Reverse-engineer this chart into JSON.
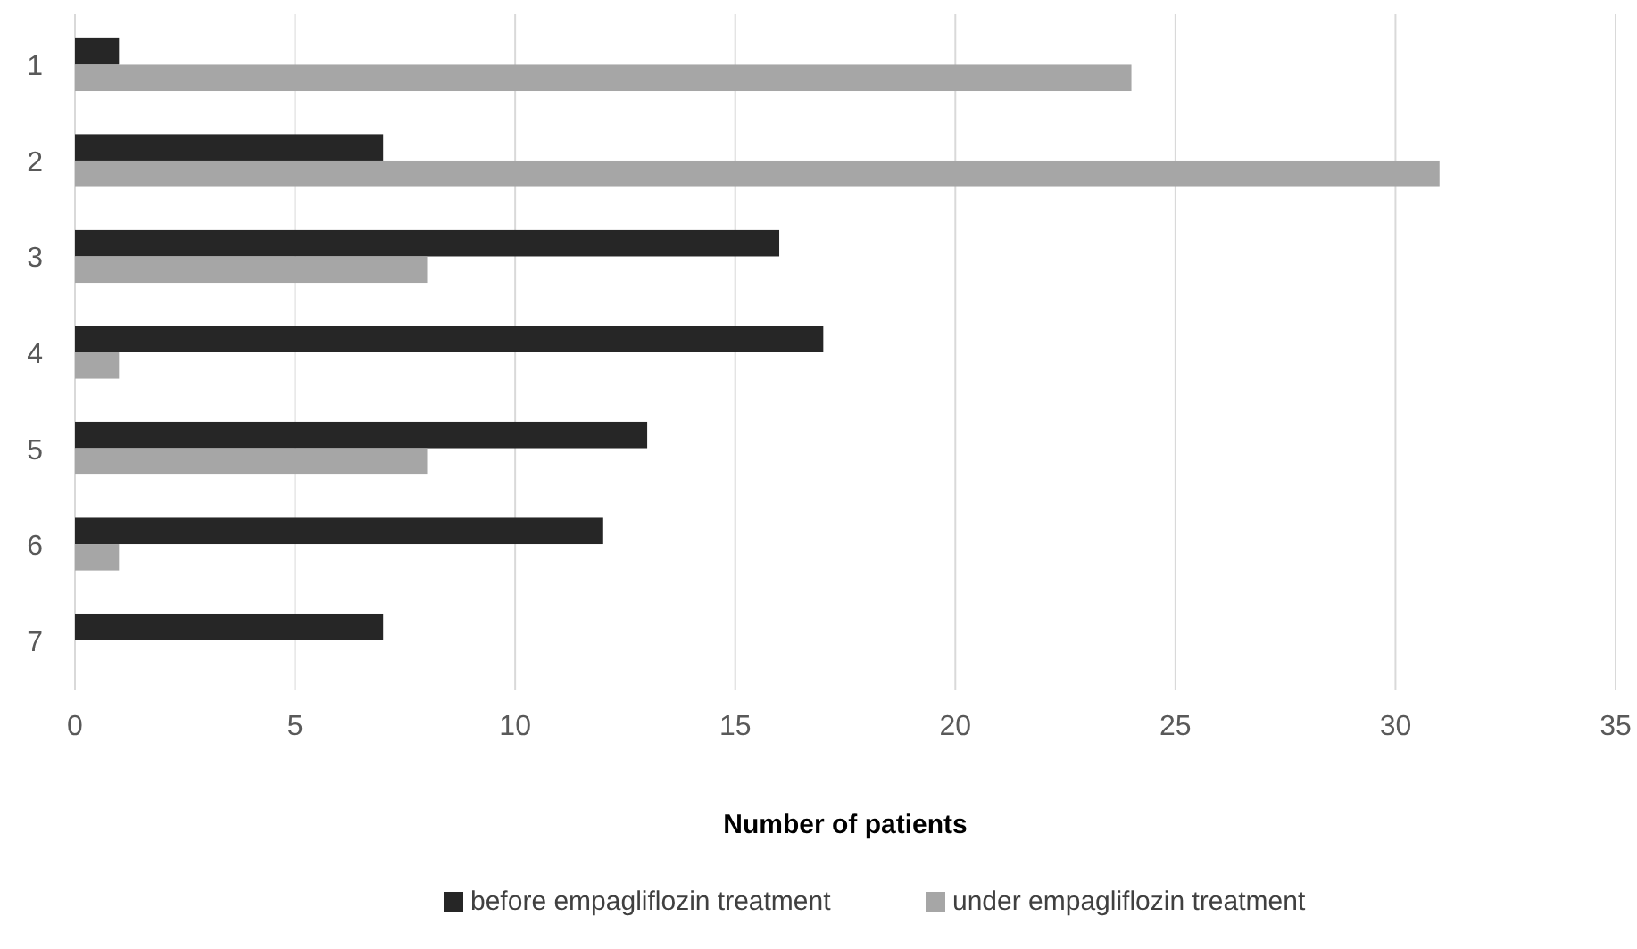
{
  "chart_data": {
    "type": "bar",
    "orientation": "horizontal",
    "categories": [
      "1",
      "2",
      "3",
      "4",
      "5",
      "6",
      "7"
    ],
    "series": [
      {
        "name": "before empagliflozin treatment",
        "color": "#262626",
        "values": [
          1,
          7,
          16,
          17,
          13,
          12,
          7
        ]
      },
      {
        "name": "under empagliflozin treatment",
        "color": "#a6a6a6",
        "values": [
          24,
          31,
          8,
          1,
          8,
          1,
          null
        ]
      }
    ],
    "xlabel": "Number of patients",
    "xlim": [
      0,
      35
    ],
    "xticks": [
      0,
      5,
      10,
      15,
      20,
      25,
      30,
      35
    ],
    "grid": "x",
    "legend": "bottom"
  }
}
